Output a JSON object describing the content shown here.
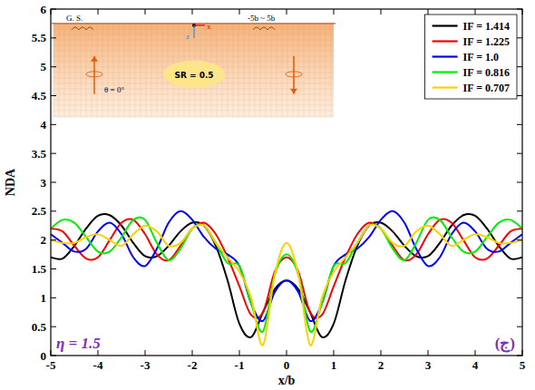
{
  "chart_data": {
    "type": "line",
    "x_label": "x/b",
    "y_label": "NDA",
    "annotations": [
      "η = 1.5",
      "(ج)",
      "G. S.",
      "-5b ~ 5b",
      "SR = 0.5",
      "θ = 0°",
      "x",
      "z"
    ],
    "x": [
      -5,
      -4.75,
      -4.5,
      -4.25,
      -4,
      -3.75,
      -3.5,
      -3.25,
      -3,
      -2.75,
      -2.5,
      -2.25,
      -2,
      -1.75,
      -1.5,
      -1.25,
      -1,
      -0.75,
      -0.5,
      -0.25,
      0,
      0.25,
      0.5,
      0.75,
      1,
      1.25,
      1.5,
      1.75,
      2,
      2.25,
      2.5,
      2.75,
      3,
      3.25,
      3.5,
      3.75,
      4,
      4.25,
      4.5,
      4.75,
      5
    ],
    "xlim": [
      -5,
      5
    ],
    "xticks": [
      -5,
      -4,
      -3,
      -2,
      -1,
      0,
      1,
      2,
      3,
      4,
      5
    ],
    "ylim": [
      0,
      6
    ],
    "yticks": [
      0,
      0.5,
      1,
      1.5,
      2,
      2.5,
      3,
      3.5,
      4,
      4.5,
      5,
      5.5,
      6
    ],
    "grid": false,
    "legend": "top-right",
    "series": [
      {
        "name": "IF = 1.414",
        "color": "#000000",
        "line_style": "solid",
        "values": [
          1.7,
          1.68,
          1.9,
          2.2,
          2.42,
          2.43,
          2.25,
          1.95,
          1.72,
          1.72,
          1.9,
          2.15,
          2.3,
          2.25,
          1.9,
          1.3,
          0.55,
          0.32,
          0.75,
          1.15,
          1.3,
          1.15,
          0.75,
          0.32,
          0.55,
          1.3,
          1.9,
          2.25,
          2.3,
          2.15,
          1.9,
          1.72,
          1.72,
          1.95,
          2.25,
          2.43,
          2.42,
          2.2,
          1.9,
          1.68,
          1.7
        ]
      },
      {
        "name": "IF = 1.225",
        "color": "#ff0000",
        "line_style": "solid",
        "values": [
          2.2,
          2.15,
          1.9,
          1.68,
          1.7,
          2.0,
          2.3,
          2.35,
          2.1,
          1.75,
          1.65,
          1.9,
          2.2,
          2.3,
          2.1,
          1.7,
          1.2,
          0.7,
          0.75,
          1.45,
          1.7,
          1.45,
          0.75,
          0.7,
          1.2,
          1.7,
          2.1,
          2.3,
          2.2,
          1.9,
          1.65,
          1.75,
          2.1,
          2.35,
          2.3,
          2.0,
          1.7,
          1.68,
          1.9,
          2.15,
          2.2
        ]
      },
      {
        "name": "IF = 1.0",
        "color": "#0000ff",
        "line_style": "solid",
        "values": [
          2.1,
          1.95,
          1.8,
          1.85,
          2.15,
          2.3,
          2.1,
          1.7,
          1.55,
          1.85,
          2.3,
          2.5,
          2.35,
          2.05,
          1.85,
          1.75,
          1.55,
          0.9,
          0.6,
          1.1,
          1.3,
          1.1,
          0.6,
          0.9,
          1.55,
          1.75,
          1.85,
          2.05,
          2.35,
          2.5,
          2.3,
          1.85,
          1.55,
          1.7,
          2.1,
          2.3,
          2.15,
          1.85,
          1.8,
          1.95,
          2.1
        ]
      },
      {
        "name": "IF = 0.816",
        "color": "#00ee00",
        "line_style": "solid",
        "values": [
          2.2,
          2.35,
          2.3,
          2.05,
          1.8,
          1.8,
          2.05,
          2.35,
          2.35,
          1.95,
          1.65,
          1.85,
          2.2,
          2.25,
          1.95,
          1.6,
          1.55,
          0.9,
          0.42,
          1.4,
          1.75,
          1.4,
          0.42,
          0.9,
          1.55,
          1.6,
          1.95,
          2.25,
          2.2,
          1.85,
          1.65,
          1.95,
          2.35,
          2.35,
          2.05,
          1.8,
          1.8,
          2.05,
          2.3,
          2.35,
          2.2
        ]
      },
      {
        "name": "IF = 0.707",
        "color": "#ffd000",
        "line_style": "solid",
        "values": [
          2.0,
          1.95,
          1.95,
          2.05,
          2.1,
          2.0,
          1.9,
          2.1,
          2.25,
          2.15,
          1.9,
          1.95,
          2.2,
          2.25,
          1.95,
          1.7,
          1.45,
          1.0,
          0.18,
          1.4,
          1.95,
          1.4,
          0.18,
          1.0,
          1.45,
          1.7,
          1.95,
          2.25,
          2.2,
          1.95,
          1.9,
          2.15,
          2.25,
          2.1,
          1.9,
          2.0,
          2.1,
          2.05,
          1.95,
          1.95,
          2.0
        ]
      }
    ]
  }
}
